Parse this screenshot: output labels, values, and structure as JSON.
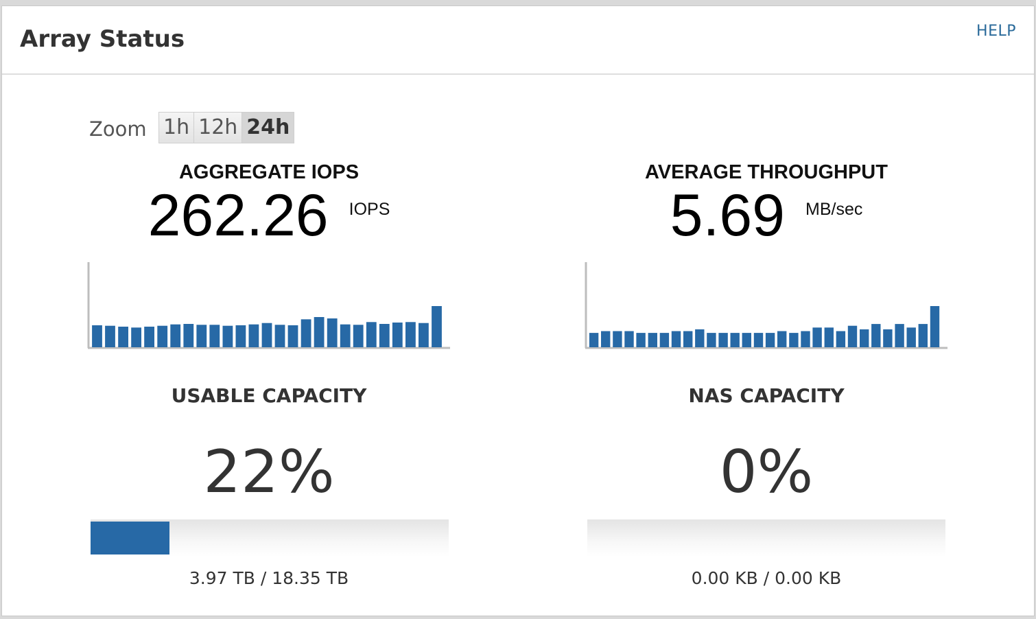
{
  "header": {
    "title": "Array Status",
    "help_label": "HELP"
  },
  "zoom": {
    "label": "Zoom",
    "options": [
      "1h",
      "12h",
      "24h"
    ],
    "selected": "24h"
  },
  "colors": {
    "accent": "#2769a6",
    "link": "#2a6a9a"
  },
  "metrics": {
    "iops": {
      "title": "AGGREGATE IOPS",
      "value": "262.26",
      "unit": "IOPS",
      "sparkline": [
        240,
        235,
        225,
        215,
        225,
        235,
        250,
        255,
        245,
        245,
        235,
        240,
        250,
        265,
        245,
        240,
        305,
        330,
        315,
        250,
        245,
        275,
        255,
        270,
        275,
        265,
        450
      ]
    },
    "throughput": {
      "title": "AVERAGE THROUGHPUT",
      "value": "5.69",
      "unit": "MB/sec",
      "sparkline": [
        4.0,
        4.5,
        4.5,
        4.5,
        4.0,
        4.0,
        4.0,
        4.5,
        4.5,
        5.0,
        4.0,
        4.0,
        4.0,
        4.0,
        4.0,
        4.0,
        4.5,
        4.0,
        4.5,
        5.5,
        5.5,
        4.5,
        6.0,
        5.0,
        6.5,
        5.0,
        6.5,
        5.5,
        6.5,
        11.5
      ]
    }
  },
  "capacity": {
    "usable": {
      "title": "USABLE CAPACITY",
      "percent_label": "22%",
      "fill_fraction": 0.22,
      "detail": "3.97 TB / 18.35 TB"
    },
    "nas": {
      "title": "NAS CAPACITY",
      "percent_label": "0%",
      "fill_fraction": 0.0,
      "detail": "0.00 KB / 0.00 KB"
    }
  }
}
